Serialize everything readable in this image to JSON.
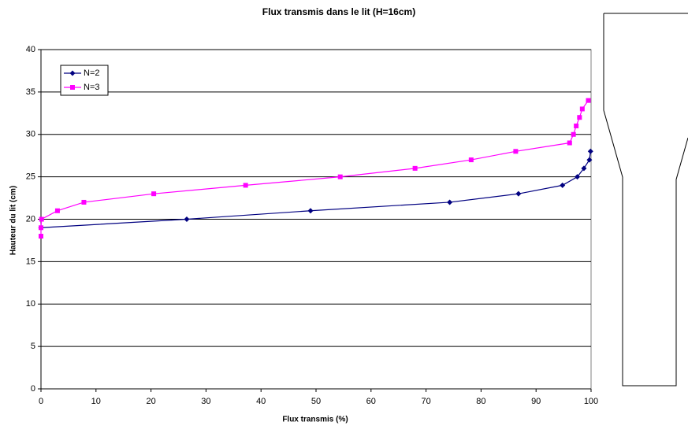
{
  "chart_data": {
    "type": "line",
    "title": "Flux transmis dans le lit (H=16cm)",
    "xlabel": "Flux transmis (%)",
    "ylabel": "Hauteur du lit (cm)",
    "xlim": [
      0,
      100
    ],
    "ylim": [
      0,
      40
    ],
    "xticks": [
      0,
      10,
      20,
      30,
      40,
      50,
      60,
      70,
      80,
      90,
      100
    ],
    "yticks": [
      0,
      5,
      10,
      15,
      20,
      25,
      30,
      35,
      40
    ],
    "grid": true,
    "legend": "upper left",
    "series": [
      {
        "name": "N=2",
        "color": "#000080",
        "marker": "diamond",
        "x": [
          0,
          26.5,
          49,
          74.3,
          86.8,
          94.8,
          97.5,
          98.7,
          99.7,
          99.9
        ],
        "values": [
          19,
          20,
          21,
          22,
          23,
          24,
          25,
          26,
          27,
          28
        ]
      },
      {
        "name": "N=3",
        "color": "#ff00ff",
        "marker": "square",
        "x": [
          0,
          0,
          0.1,
          3,
          7.8,
          20.5,
          37.2,
          54.4,
          68,
          78.2,
          86.3,
          96.1,
          96.8,
          97.3,
          97.9,
          98.4,
          99.5
        ],
        "values": [
          18,
          19,
          20,
          21,
          22,
          23,
          24,
          25,
          26,
          27,
          28,
          29,
          30,
          31,
          32,
          33,
          34
        ]
      }
    ]
  }
}
